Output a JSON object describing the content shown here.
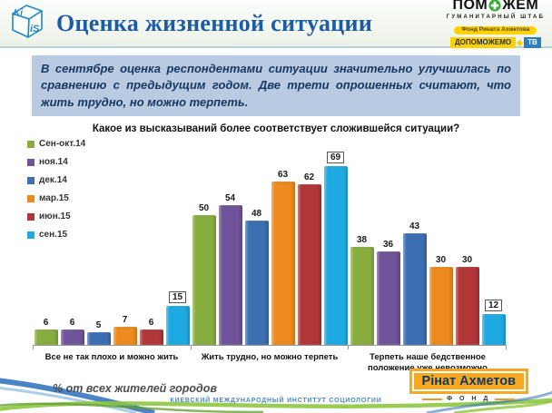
{
  "header": {
    "title": "Оценка жизненной ситуации",
    "kiis": {
      "top": "Ki",
      "front": "iS"
    },
    "pomozhem": {
      "name_left": "ПОМ",
      "name_right": "ЖЕМ",
      "subtitle": "ГУМАНИТАРНЫЙ ШТАБ",
      "fond_pill": "Фонд Рината Ахметова",
      "dopomozhemo": "ДОПОМОЖЕМО",
      "tv": "ТВ"
    }
  },
  "infobox": {
    "text": "В сентябре оценка респондентами ситуации значительно улучшилась по сравнению с предыдущим годом. Две трети опрошенных считают, что жить трудно, но можно терпеть."
  },
  "chart_data": {
    "type": "bar",
    "title": "Какое из высказываний более соответствует сложившейся ситуации?",
    "categories": [
      "Все не так плохо и можно жить",
      "Жить трудно, но можно терпеть",
      "Терпеть наше бедственное положение уже невозможно"
    ],
    "series": [
      {
        "name": "Сен-окт.14",
        "color": "#87AD3F",
        "values": [
          6,
          50,
          38
        ]
      },
      {
        "name": "ноя.14",
        "color": "#6F5499",
        "values": [
          6,
          54,
          36
        ]
      },
      {
        "name": "дек.14",
        "color": "#3B6FB2",
        "values": [
          5,
          48,
          43
        ]
      },
      {
        "name": "мар.15",
        "color": "#EC8A1F",
        "values": [
          7,
          63,
          30
        ]
      },
      {
        "name": "июн.15",
        "color": "#B03638",
        "values": [
          6,
          62,
          30
        ]
      },
      {
        "name": "сен.15",
        "color": "#1FA9E2",
        "values": [
          15,
          69,
          12
        ],
        "boxed_labels": true
      }
    ],
    "ylim": [
      0,
      75
    ],
    "grid": false,
    "legend_position": "left",
    "data_labels": true
  },
  "footer": {
    "note": "% от всех жителей городов",
    "institute": "КИЕВСКИЙ МЕЖДУНАРОДНЫЙ ИНСТИТУТ СОЦИОЛОГИИ",
    "akhmetov": {
      "name": "Рінат Ахметов",
      "fond": "Ф О Н Д"
    }
  },
  "colors": {
    "title_blue": "#1C5CA4",
    "infobox_bg": "#B9CBE2",
    "infobox_text": "#17375E",
    "header_divider": "#B5D3D8",
    "pomozhem_yellow": "#FFD200",
    "tv_badge_blue": "#2F7DC1",
    "akhmetov_orange": "#F7A820",
    "akhmetov_text": "#123A66",
    "axis_gray": "#9A9A9A"
  }
}
